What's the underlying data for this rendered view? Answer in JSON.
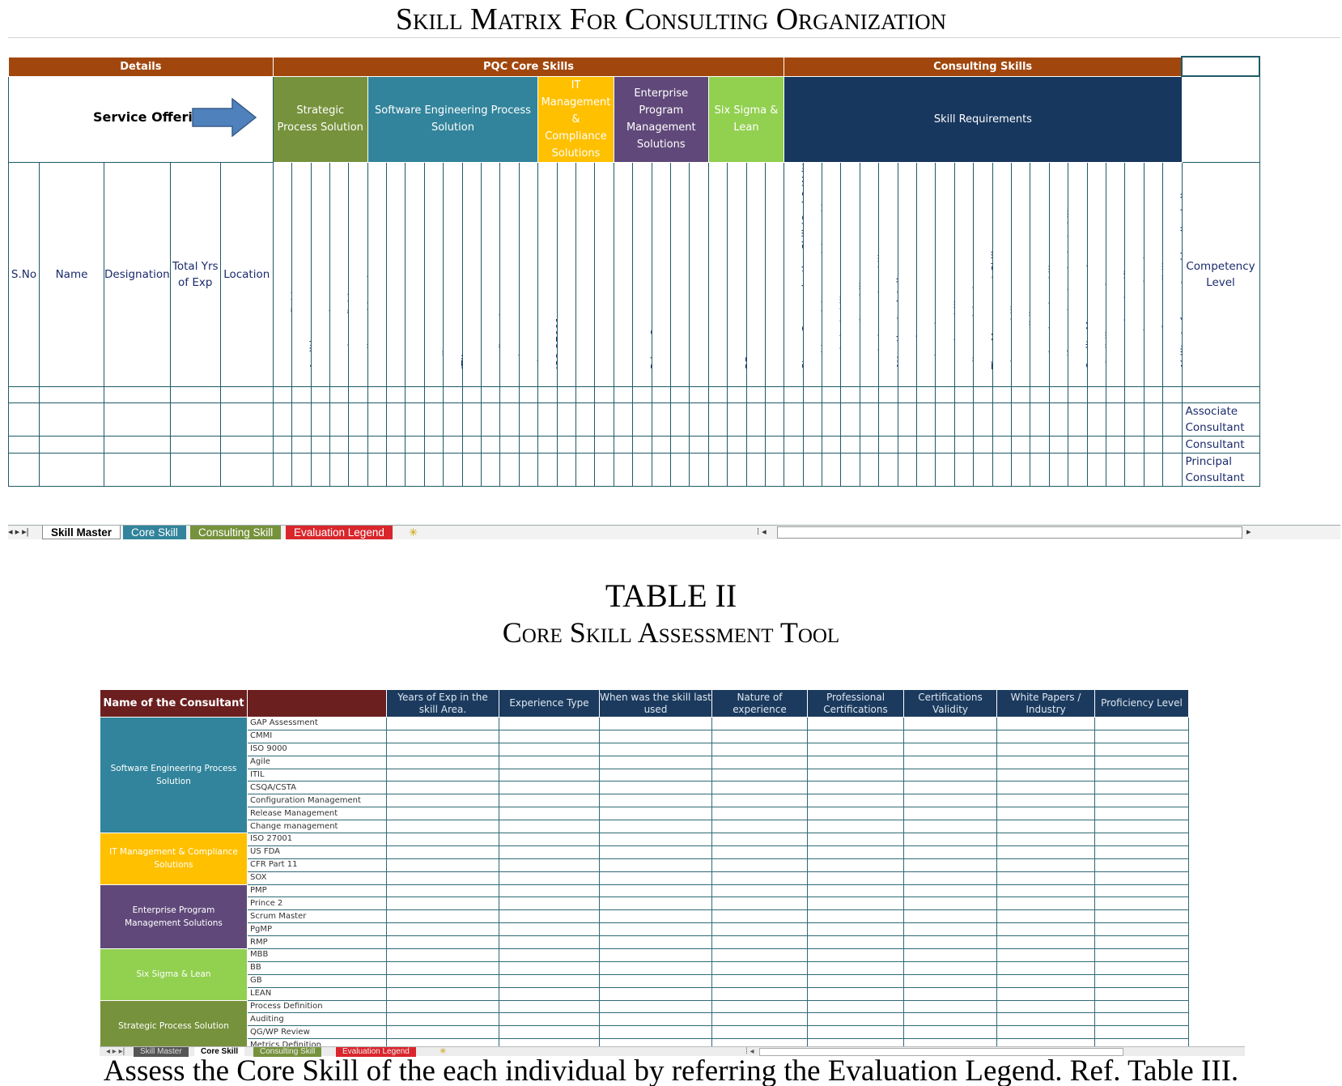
{
  "caption_top": {
    "title": "Skill Matrix For Consulting Organization"
  },
  "sheet1": {
    "group_headers": {
      "details": "Details",
      "pqc": "PQC Core Skills",
      "consulting": "Consulting Skills"
    },
    "service_offering_label": "Service Offerin",
    "categories": [
      {
        "label": "Strategic Process Solution",
        "color": "#76923c"
      },
      {
        "label": "Software Engineering Process Solution",
        "color": "#31849b"
      },
      {
        "label": "IT Management & Compliance Solutions",
        "color": "#ffc000"
      },
      {
        "label": "Enterprise Program Management Solutions",
        "color": "#60497a"
      },
      {
        "label": "Six Sigma & Lean",
        "color": "#92d050"
      },
      {
        "label": "Skill Requirements",
        "color": "#17375e"
      }
    ],
    "detail_headers": [
      "S.No",
      "Name",
      "Designation",
      "Total Yrs of Exp",
      "Location"
    ],
    "skills": {
      "strategic": [
        "Process Definition",
        "Auditing",
        "QG/WP Review",
        "Metrics Definition",
        "Quality Dashboard"
      ],
      "software": [
        "GAP Assessment",
        "CMMI",
        "ISO 9000",
        "Agile",
        "ITIL",
        "CSQA /CSTE",
        "Configuration Management",
        "Release Management",
        "Change management"
      ],
      "it": [
        "ISO 27001",
        "US FDA",
        "CFR Part 11",
        "SOX"
      ],
      "enterprise": [
        "PMP",
        "Prince 2",
        "Scrum Master",
        "PgMP",
        "RMP"
      ],
      "sixsigma": [
        "MBB",
        "BB",
        "GB",
        "LEAN"
      ],
      "consulting": [
        "Strong Communication Skill (Oral & Written)",
        "Problem Solving & Decision Making",
        "Analytical Skills",
        "Presentation Skills",
        "Logical Reasoning Skill",
        "Attention to detail",
        "Assertiveness",
        "Independent Actor",
        "Learning Ability",
        "Client Participation",
        "Time Management Skill",
        "Change Ability",
        "Team Building",
        "Active Listening Skill",
        "Self Promoting (Marketing) Skill",
        "Quality Management",
        "Flexibility at work",
        "Opportunity Identifier",
        "Innovation & Exploration",
        "Sense of Responsibility",
        "Ability to forecast and handle challenges"
      ]
    },
    "competency_header": "Competency Level",
    "competency_levels": [
      "Associate Consultant",
      "Consultant",
      "Principal Consultant"
    ],
    "tabs": [
      "Skill Master",
      "Core Skill",
      "Consulting Skill",
      "Evaluation Legend"
    ]
  },
  "caption_mid": {
    "table_no": "TABLE II",
    "title": "Core Skill Assessment Tool"
  },
  "sheet2": {
    "name_header": "Name of the Consultant",
    "columns": [
      "Years of Exp in the skill Area.",
      "Experience Type",
      "When was the skill last used",
      "Nature of experience",
      "Professional Certifications",
      "Certifications Validity",
      "White Papers / Industry",
      "Proficiency Level"
    ],
    "groups": [
      {
        "label": "Software Engineering Process Solution",
        "color": "#31849b",
        "skills": [
          "GAP Assessment",
          "CMMI",
          "ISO 9000",
          "Agile",
          "ITIL",
          "CSQA/CSTA",
          "Configuration Management",
          "Release Management",
          "Change management"
        ]
      },
      {
        "label": "IT Management & Compliance Solutions",
        "color": "#ffc000",
        "skills": [
          "ISO 27001",
          "US FDA",
          "CFR Part 11",
          "SOX"
        ]
      },
      {
        "label": "Enterprise Program Management Solutions",
        "color": "#60497a",
        "skills": [
          "PMP",
          "Prince 2",
          "Scrum Master",
          "PgMP",
          "RMP"
        ]
      },
      {
        "label": "Six Sigma & Lean",
        "color": "#92d050",
        "skills": [
          "MBB",
          "BB",
          "GB",
          "LEAN"
        ]
      },
      {
        "label": "Strategic Process Solution",
        "color": "#76923c",
        "skills": [
          "Process Definition",
          "Auditing",
          "QG/WP Review",
          "Metrics Definition"
        ]
      }
    ],
    "tabs": [
      "Skill Master",
      "Core Skill",
      "Consulting Skill",
      "Evaluation Legend"
    ]
  },
  "caption_bottom": "Assess the Core Skill of the each individual by referring the Evaluation Legend. Ref. Table III."
}
